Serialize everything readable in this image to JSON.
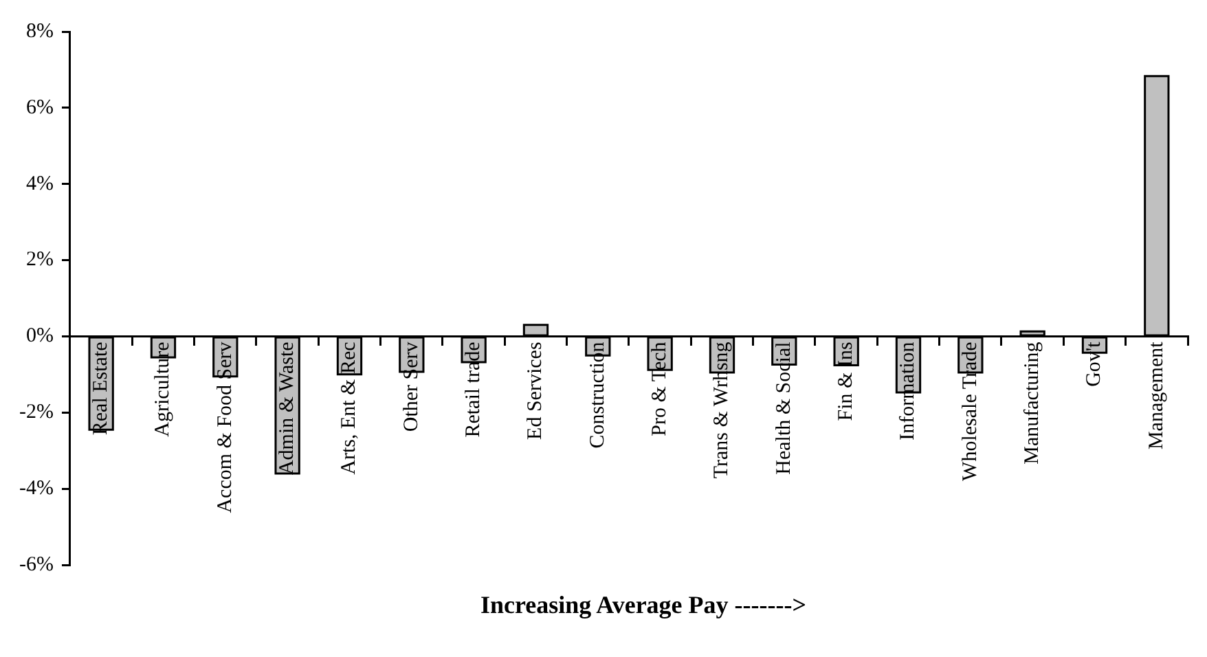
{
  "chart_data": {
    "type": "bar",
    "xlabel": "Increasing Average Pay ------->",
    "categories": [
      "Real Estate",
      "Agriculture",
      "Accom & Food Serv",
      "Admin & Waste",
      "Arts, Ent & Rec",
      "Other Serv",
      "Retail trade",
      "Ed Services",
      "Construction",
      "Pro & Tech",
      "Trans & Wrhsng",
      "Health & Social",
      "Fin & Ins",
      "Information",
      "Wholesale Trade",
      "Manufacturing",
      "Gov't",
      "Management"
    ],
    "values": [
      -2.45,
      -0.55,
      -1.05,
      -3.6,
      -1.0,
      -0.93,
      -0.68,
      0.3,
      -0.5,
      -0.88,
      -0.95,
      -0.74,
      -0.76,
      -1.47,
      -0.95,
      0.13,
      -0.43,
      6.83
    ],
    "color": "#c0c0c0",
    "ylim": [
      -6,
      8
    ],
    "yticks": [
      {
        "value": -6,
        "label": "-6%"
      },
      {
        "value": -4,
        "label": "-4%"
      },
      {
        "value": -2,
        "label": "-2%"
      },
      {
        "value": 0,
        "label": "0%"
      },
      {
        "value": 2,
        "label": "2%"
      },
      {
        "value": 4,
        "label": "4%"
      },
      {
        "value": 6,
        "label": "6%"
      },
      {
        "value": 8,
        "label": "8%"
      }
    ]
  }
}
